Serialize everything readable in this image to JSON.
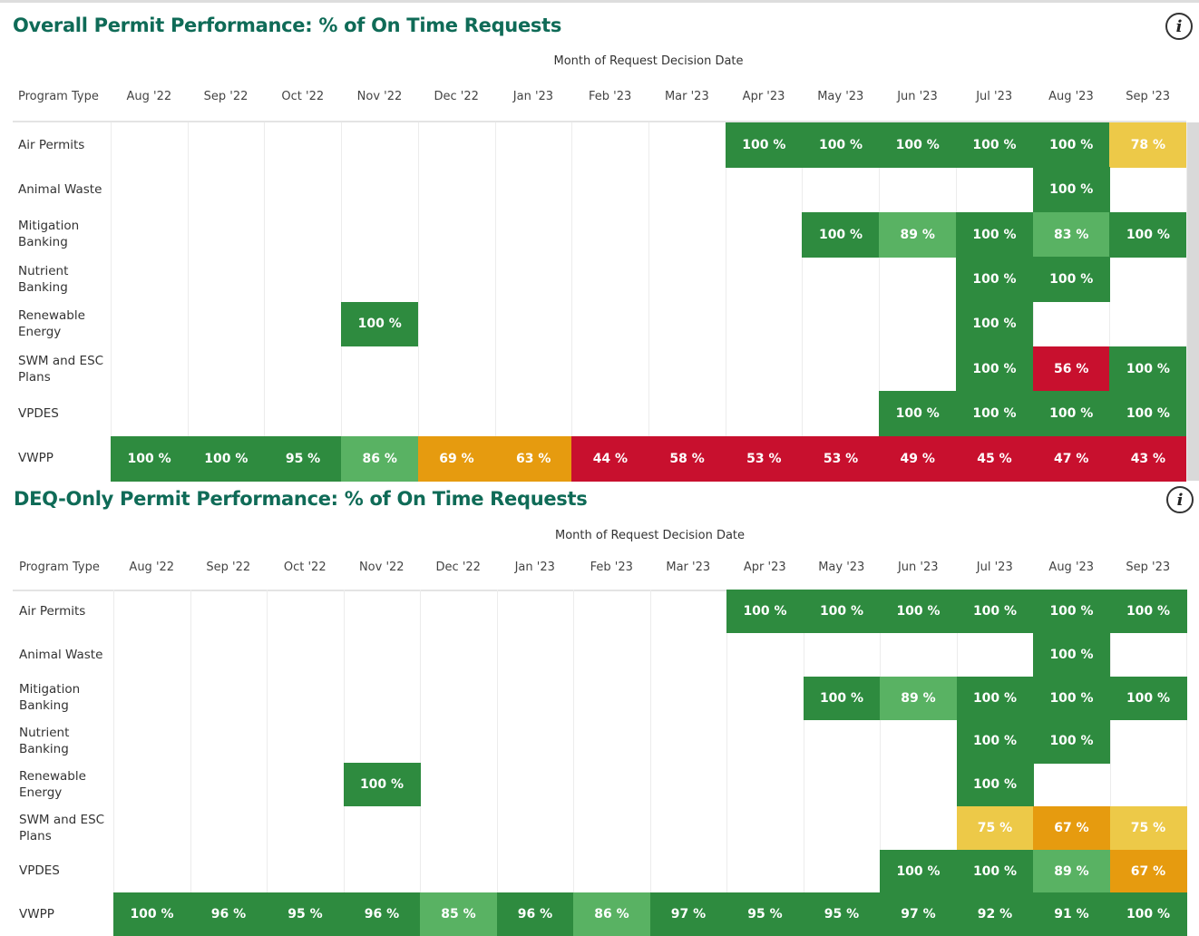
{
  "chart_data": [
    {
      "type": "heatmap",
      "title": "Overall Permit Performance: % of On Time Requests",
      "x_label": "Month of Request Decision Date",
      "row_header": "Program Type",
      "categories": [
        "Aug '22",
        "Sep '22",
        "Oct '22",
        "Nov '22",
        "Dec '22",
        "Jan '23",
        "Feb '23",
        "Mar '23",
        "Apr '23",
        "May '23",
        "Jun '23",
        "Jul '23",
        "Aug '23",
        "Sep '23"
      ],
      "rows": [
        "Air Permits",
        "Animal Waste",
        "Mitigation Banking",
        "Nutrient Banking",
        "Renewable Energy",
        "SWM and ESC Plans",
        "VPDES",
        "VWPP"
      ],
      "values": [
        [
          null,
          null,
          null,
          null,
          null,
          null,
          null,
          null,
          100,
          100,
          100,
          100,
          100,
          78
        ],
        [
          null,
          null,
          null,
          null,
          null,
          null,
          null,
          null,
          null,
          null,
          null,
          null,
          100,
          null
        ],
        [
          null,
          null,
          null,
          null,
          null,
          null,
          null,
          null,
          null,
          100,
          89,
          100,
          83,
          100
        ],
        [
          null,
          null,
          null,
          null,
          null,
          null,
          null,
          null,
          null,
          null,
          null,
          100,
          100,
          null
        ],
        [
          null,
          null,
          null,
          100,
          null,
          null,
          null,
          null,
          null,
          null,
          null,
          100,
          null,
          null
        ],
        [
          null,
          null,
          null,
          null,
          null,
          null,
          null,
          null,
          null,
          null,
          null,
          100,
          56,
          100
        ],
        [
          null,
          null,
          null,
          null,
          null,
          null,
          null,
          null,
          null,
          null,
          100,
          100,
          100,
          100
        ],
        [
          100,
          100,
          95,
          86,
          69,
          63,
          44,
          58,
          53,
          53,
          49,
          45,
          47,
          43
        ]
      ],
      "value_labels": [
        [
          null,
          null,
          null,
          null,
          null,
          null,
          null,
          null,
          "100 %",
          "100 %",
          "100 %",
          "100 %",
          "100 %",
          "78 %"
        ],
        [
          null,
          null,
          null,
          null,
          null,
          null,
          null,
          null,
          null,
          null,
          null,
          null,
          "100 %",
          null
        ],
        [
          null,
          null,
          null,
          null,
          null,
          null,
          null,
          null,
          null,
          "100 %",
          "89 %",
          "100 %",
          "83 %",
          "100 %"
        ],
        [
          null,
          null,
          null,
          null,
          null,
          null,
          null,
          null,
          null,
          null,
          null,
          "100 %",
          "100 %",
          null
        ],
        [
          null,
          null,
          null,
          "100 %",
          null,
          null,
          null,
          null,
          null,
          null,
          null,
          "100 %",
          null,
          null
        ],
        [
          null,
          null,
          null,
          null,
          null,
          null,
          null,
          null,
          null,
          null,
          null,
          "100 %",
          "56 %",
          "100 %"
        ],
        [
          null,
          null,
          null,
          null,
          null,
          null,
          null,
          null,
          null,
          null,
          "100 %",
          "100 %",
          "100 %",
          "100 %"
        ],
        [
          "100 %",
          "100 %",
          "95 %",
          "86 %",
          "69 %",
          "63 %",
          "44 %",
          "58 %",
          "53 %",
          "53 %",
          "49 %",
          "45 %",
          "47 %",
          "43 %"
        ]
      ],
      "colors": [
        [
          null,
          null,
          null,
          null,
          null,
          null,
          null,
          null,
          "#2e8b3f",
          "#2e8b3f",
          "#2e8b3f",
          "#2e8b3f",
          "#2e8b3f",
          "#edc948"
        ],
        [
          null,
          null,
          null,
          null,
          null,
          null,
          null,
          null,
          null,
          null,
          null,
          null,
          "#2e8b3f",
          null
        ],
        [
          null,
          null,
          null,
          null,
          null,
          null,
          null,
          null,
          null,
          "#2e8b3f",
          "#59b263",
          "#2e8b3f",
          "#59b263",
          "#2e8b3f"
        ],
        [
          null,
          null,
          null,
          null,
          null,
          null,
          null,
          null,
          null,
          null,
          null,
          "#2e8b3f",
          "#2e8b3f",
          null
        ],
        [
          null,
          null,
          null,
          "#2e8b3f",
          null,
          null,
          null,
          null,
          null,
          null,
          null,
          "#2e8b3f",
          null,
          null
        ],
        [
          null,
          null,
          null,
          null,
          null,
          null,
          null,
          null,
          null,
          null,
          null,
          "#2e8b3f",
          "#c8102e",
          "#2e8b3f"
        ],
        [
          null,
          null,
          null,
          null,
          null,
          null,
          null,
          null,
          null,
          null,
          "#2e8b3f",
          "#2e8b3f",
          "#2e8b3f",
          "#2e8b3f"
        ],
        [
          "#2e8b3f",
          "#2e8b3f",
          "#2e8b3f",
          "#59b263",
          "#e69b0f",
          "#e69b0f",
          "#c8102e",
          "#c8102e",
          "#c8102e",
          "#c8102e",
          "#c8102e",
          "#c8102e",
          "#c8102e",
          "#c8102e"
        ]
      ]
    },
    {
      "type": "heatmap",
      "title": "DEQ-Only Permit Performance: % of On Time Requests",
      "x_label": "Month of Request Decision Date",
      "row_header": "Program Type",
      "categories": [
        "Aug '22",
        "Sep '22",
        "Oct '22",
        "Nov '22",
        "Dec '22",
        "Jan '23",
        "Feb '23",
        "Mar '23",
        "Apr '23",
        "May '23",
        "Jun '23",
        "Jul '23",
        "Aug '23",
        "Sep '23"
      ],
      "rows": [
        "Air Permits",
        "Animal Waste",
        "Mitigation Banking",
        "Nutrient Banking",
        "Renewable Energy",
        "SWM and ESC Plans",
        "VPDES",
        "VWPP"
      ],
      "values": [
        [
          null,
          null,
          null,
          null,
          null,
          null,
          null,
          null,
          100,
          100,
          100,
          100,
          100,
          100
        ],
        [
          null,
          null,
          null,
          null,
          null,
          null,
          null,
          null,
          null,
          null,
          null,
          null,
          100,
          null
        ],
        [
          null,
          null,
          null,
          null,
          null,
          null,
          null,
          null,
          null,
          100,
          89,
          100,
          100,
          100
        ],
        [
          null,
          null,
          null,
          null,
          null,
          null,
          null,
          null,
          null,
          null,
          null,
          100,
          100,
          null
        ],
        [
          null,
          null,
          null,
          100,
          null,
          null,
          null,
          null,
          null,
          null,
          null,
          100,
          null,
          null
        ],
        [
          null,
          null,
          null,
          null,
          null,
          null,
          null,
          null,
          null,
          null,
          null,
          75,
          67,
          75
        ],
        [
          null,
          null,
          null,
          null,
          null,
          null,
          null,
          null,
          null,
          null,
          100,
          100,
          89,
          67
        ],
        [
          100,
          96,
          95,
          96,
          85,
          96,
          86,
          97,
          95,
          95,
          97,
          92,
          91,
          100
        ]
      ],
      "value_labels": [
        [
          null,
          null,
          null,
          null,
          null,
          null,
          null,
          null,
          "100 %",
          "100 %",
          "100 %",
          "100 %",
          "100 %",
          "100 %"
        ],
        [
          null,
          null,
          null,
          null,
          null,
          null,
          null,
          null,
          null,
          null,
          null,
          null,
          "100 %",
          null
        ],
        [
          null,
          null,
          null,
          null,
          null,
          null,
          null,
          null,
          null,
          "100 %",
          "89 %",
          "100 %",
          "100 %",
          "100 %"
        ],
        [
          null,
          null,
          null,
          null,
          null,
          null,
          null,
          null,
          null,
          null,
          null,
          "100 %",
          "100 %",
          null
        ],
        [
          null,
          null,
          null,
          "100 %",
          null,
          null,
          null,
          null,
          null,
          null,
          null,
          "100 %",
          null,
          null
        ],
        [
          null,
          null,
          null,
          null,
          null,
          null,
          null,
          null,
          null,
          null,
          null,
          "75 %",
          "67 %",
          "75 %"
        ],
        [
          null,
          null,
          null,
          null,
          null,
          null,
          null,
          null,
          null,
          null,
          "100 %",
          "100 %",
          "89 %",
          "67 %"
        ],
        [
          "100 %",
          "96 %",
          "95 %",
          "96 %",
          "85 %",
          "96 %",
          "86 %",
          "97 %",
          "95 %",
          "95 %",
          "97 %",
          "92 %",
          "91 %",
          "100 %"
        ]
      ],
      "colors": [
        [
          null,
          null,
          null,
          null,
          null,
          null,
          null,
          null,
          "#2e8b3f",
          "#2e8b3f",
          "#2e8b3f",
          "#2e8b3f",
          "#2e8b3f",
          "#2e8b3f"
        ],
        [
          null,
          null,
          null,
          null,
          null,
          null,
          null,
          null,
          null,
          null,
          null,
          null,
          "#2e8b3f",
          null
        ],
        [
          null,
          null,
          null,
          null,
          null,
          null,
          null,
          null,
          null,
          "#2e8b3f",
          "#59b263",
          "#2e8b3f",
          "#2e8b3f",
          "#2e8b3f"
        ],
        [
          null,
          null,
          null,
          null,
          null,
          null,
          null,
          null,
          null,
          null,
          null,
          "#2e8b3f",
          "#2e8b3f",
          null
        ],
        [
          null,
          null,
          null,
          "#2e8b3f",
          null,
          null,
          null,
          null,
          null,
          null,
          null,
          "#2e8b3f",
          null,
          null
        ],
        [
          null,
          null,
          null,
          null,
          null,
          null,
          null,
          null,
          null,
          null,
          null,
          "#edc948",
          "#e69b0f",
          "#edc948"
        ],
        [
          null,
          null,
          null,
          null,
          null,
          null,
          null,
          null,
          null,
          null,
          "#2e8b3f",
          "#2e8b3f",
          "#59b263",
          "#e69b0f"
        ],
        [
          "#2e8b3f",
          "#2e8b3f",
          "#2e8b3f",
          "#2e8b3f",
          "#59b263",
          "#2e8b3f",
          "#59b263",
          "#2e8b3f",
          "#2e8b3f",
          "#2e8b3f",
          "#2e8b3f",
          "#2e8b3f",
          "#2e8b3f",
          "#2e8b3f"
        ]
      ]
    }
  ]
}
